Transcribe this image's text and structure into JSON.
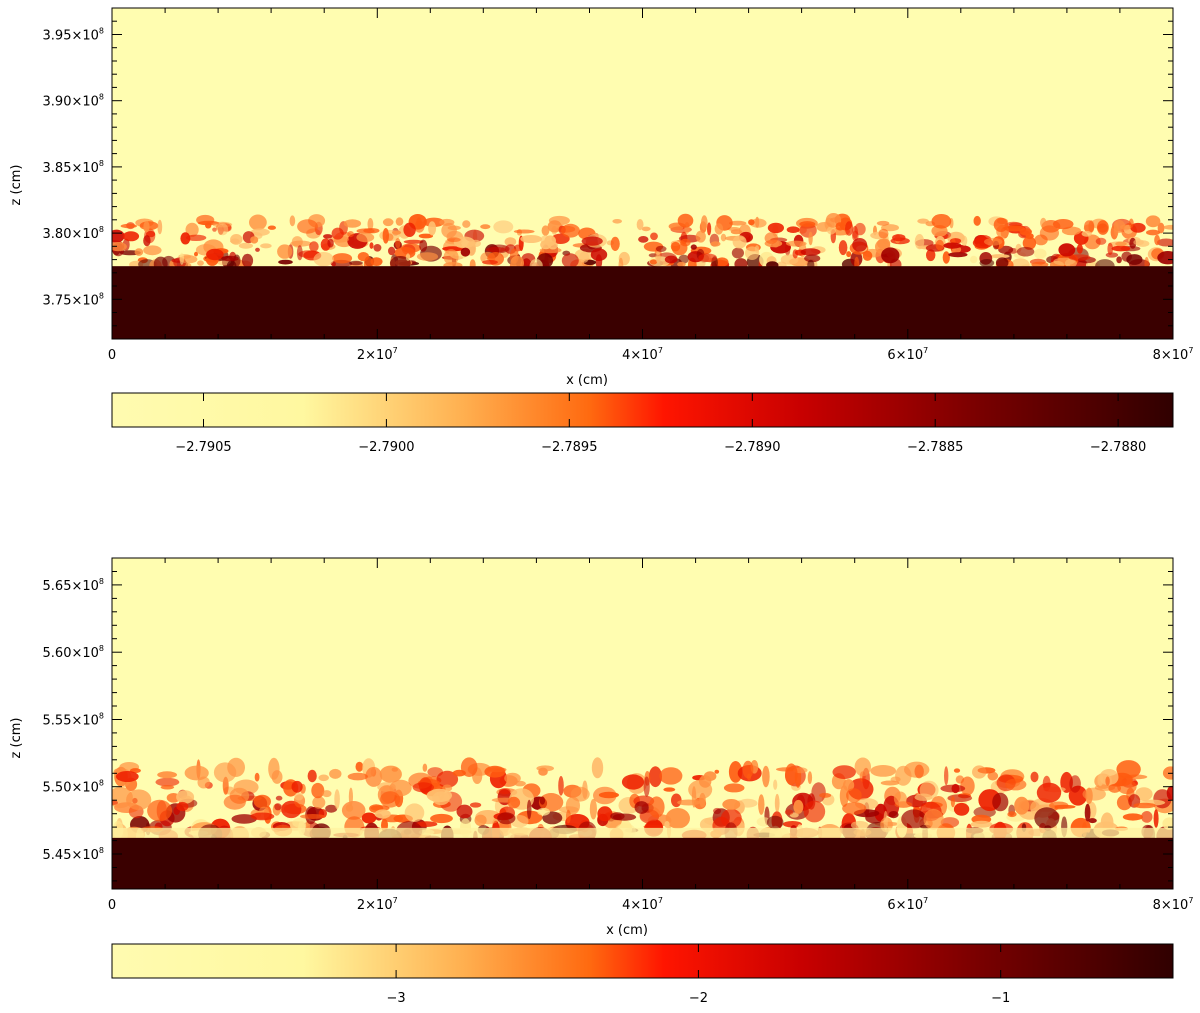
{
  "chart_data": [
    {
      "type": "heatmap",
      "xlabel": "x (cm)",
      "ylabel": "z (cm)",
      "xlim": [
        0,
        80000000
      ],
      "ylim": [
        372000000,
        397000000
      ],
      "x_ticks": [
        {
          "value": 0,
          "mantissa": "0",
          "exponent": ""
        },
        {
          "value": 20000000,
          "mantissa": "2×10",
          "exponent": "7"
        },
        {
          "value": 40000000,
          "mantissa": "4×10",
          "exponent": "7"
        },
        {
          "value": 60000000,
          "mantissa": "6×10",
          "exponent": "7"
        },
        {
          "value": 80000000,
          "mantissa": "8×10",
          "exponent": "7"
        }
      ],
      "y_ticks": [
        {
          "value": 375000000,
          "mantissa": "3.75×10",
          "exponent": "8"
        },
        {
          "value": 380000000,
          "mantissa": "3.80×10",
          "exponent": "8"
        },
        {
          "value": 385000000,
          "mantissa": "3.85×10",
          "exponent": "8"
        },
        {
          "value": 390000000,
          "mantissa": "3.90×10",
          "exponent": "8"
        },
        {
          "value": 395000000,
          "mantissa": "3.95×10",
          "exponent": "8"
        }
      ],
      "interface_z": 377500000,
      "mixing_top_z": 381000000,
      "colorbar": {
        "range": [
          -2.79075,
          -2.78785
        ],
        "ticks": [
          -2.7905,
          -2.79,
          -2.7895,
          -2.789,
          -2.7885,
          -2.788
        ],
        "tick_labels": [
          "−2.7905",
          "−2.7900",
          "−2.7895",
          "−2.7890",
          "−2.7885",
          "−2.7880"
        ],
        "colormap": "hot_r"
      }
    },
    {
      "type": "heatmap",
      "xlabel": "x (cm)",
      "ylabel": "z (cm)",
      "xlim": [
        0,
        80000000
      ],
      "ylim": [
        542400000,
        567000000
      ],
      "x_ticks": [
        {
          "value": 0,
          "mantissa": "0",
          "exponent": ""
        },
        {
          "value": 20000000,
          "mantissa": "2×10",
          "exponent": "7"
        },
        {
          "value": 40000000,
          "mantissa": "4×10",
          "exponent": "7"
        },
        {
          "value": 60000000,
          "mantissa": "6×10",
          "exponent": "7"
        },
        {
          "value": 80000000,
          "mantissa": "8×10",
          "exponent": "7"
        }
      ],
      "y_ticks": [
        {
          "value": 545000000,
          "mantissa": "5.45×10",
          "exponent": "8"
        },
        {
          "value": 550000000,
          "mantissa": "5.50×10",
          "exponent": "8"
        },
        {
          "value": 555000000,
          "mantissa": "5.55×10",
          "exponent": "8"
        },
        {
          "value": 560000000,
          "mantissa": "5.60×10",
          "exponent": "8"
        },
        {
          "value": 565000000,
          "mantissa": "5.65×10",
          "exponent": "8"
        }
      ],
      "interface_z": 546200000,
      "mixing_top_z": 551500000,
      "colorbar": {
        "range": [
          -3.94,
          -0.43
        ],
        "ticks": [
          -3,
          -2,
          -1
        ],
        "tick_labels": [
          "−3",
          "−2",
          "−1"
        ],
        "colormap": "hot_r"
      }
    }
  ]
}
